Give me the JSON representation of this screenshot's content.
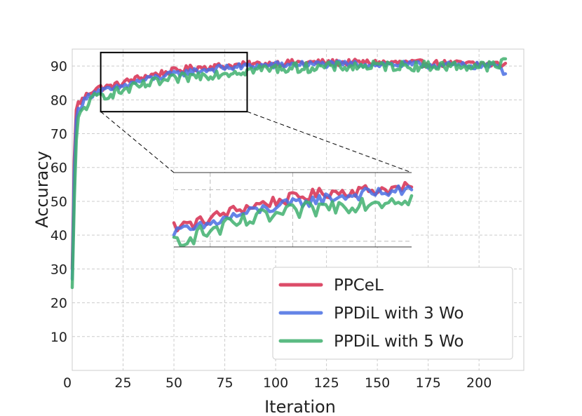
{
  "chart_data": {
    "type": "line",
    "title": "",
    "xlabel": "Iteration",
    "ylabel": "Accuracy",
    "xlim": [
      0,
      222
    ],
    "ylim": [
      0,
      95
    ],
    "xticks": [
      0,
      25,
      50,
      75,
      100,
      125,
      150,
      175,
      200
    ],
    "xtick_labels": [
      "0",
      "25",
      "50",
      "75",
      "100",
      "125",
      "150",
      "175",
      "200"
    ],
    "yticks": [
      10,
      20,
      30,
      40,
      50,
      60,
      70,
      80,
      90
    ],
    "ytick_labels": [
      "10",
      "20",
      "30",
      "40",
      "50",
      "60",
      "70",
      "80",
      "90"
    ],
    "grid": true,
    "legend_position": "bottom-right",
    "zoom_region": {
      "x_range": [
        14,
        86
      ],
      "y_range": [
        76.5,
        94
      ]
    },
    "series": [
      {
        "name": "PPCeL",
        "color": "#d62d50",
        "anchors": [
          [
            0,
            30
          ],
          [
            1,
            62
          ],
          [
            2,
            77
          ],
          [
            3,
            79
          ],
          [
            5,
            80
          ],
          [
            8,
            82
          ],
          [
            12,
            83.5
          ],
          [
            20,
            84
          ],
          [
            30,
            86
          ],
          [
            40,
            87.5
          ],
          [
            50,
            88.5
          ],
          [
            60,
            89.5
          ],
          [
            75,
            90
          ],
          [
            90,
            90.5
          ],
          [
            110,
            91
          ],
          [
            150,
            91
          ],
          [
            213,
            90.5
          ]
        ],
        "noise": 1.0
      },
      {
        "name": "PPDiL with 3 Wo",
        "color": "#4a6fe3",
        "anchors": [
          [
            0,
            27
          ],
          [
            1,
            58
          ],
          [
            2,
            74
          ],
          [
            3,
            77
          ],
          [
            5,
            79
          ],
          [
            8,
            81
          ],
          [
            12,
            82.5
          ],
          [
            20,
            83
          ],
          [
            30,
            85
          ],
          [
            40,
            86.5
          ],
          [
            50,
            87.5
          ],
          [
            60,
            88.5
          ],
          [
            75,
            89.5
          ],
          [
            90,
            90
          ],
          [
            110,
            90.5
          ],
          [
            150,
            90.5
          ],
          [
            210,
            90
          ],
          [
            213,
            87.5
          ]
        ],
        "noise": 1.0
      },
      {
        "name": "PPDiL with 5 Wo",
        "color": "#3fb06e",
        "anchors": [
          [
            0,
            24.5
          ],
          [
            1,
            50
          ],
          [
            2,
            68
          ],
          [
            3,
            74
          ],
          [
            5,
            77
          ],
          [
            8,
            79
          ],
          [
            12,
            81
          ],
          [
            20,
            82
          ],
          [
            30,
            83.5
          ],
          [
            40,
            85
          ],
          [
            50,
            86
          ],
          [
            60,
            87
          ],
          [
            75,
            88
          ],
          [
            90,
            89
          ],
          [
            110,
            89.5
          ],
          [
            150,
            90
          ],
          [
            210,
            90
          ],
          [
            213,
            92
          ]
        ],
        "noise": 1.5
      }
    ]
  }
}
